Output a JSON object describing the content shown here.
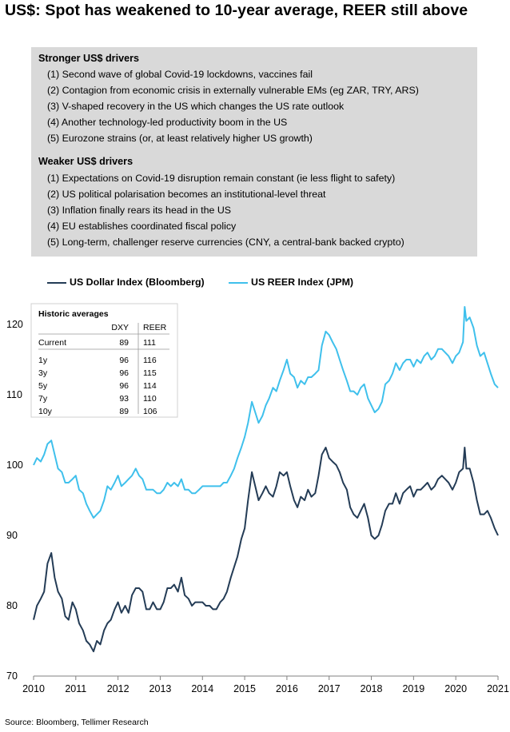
{
  "title": "US$: Spot has weakened to 10-year average, REER still above",
  "drivers": {
    "stronger": {
      "heading": "Stronger US$ drivers",
      "items": [
        "(1) Second wave of global Covid-19 lockdowns, vaccines fail",
        "(2) Contagion from economic crisis in externally vulnerable EMs (eg ZAR, TRY, ARS)",
        "(3) V-shaped recovery in the US which changes the US rate outlook",
        "(4) Another technology-led productivity boom in the US",
        "(5) Eurozone strains (or, at least relatively higher US growth)"
      ]
    },
    "weaker": {
      "heading": "Weaker US$ drivers",
      "items": [
        "(1) Expectations on Covid-19 disruption remain constant (ie less flight to safety)",
        "(2) US political polarisation becomes an institutional-level threat",
        "(3) Inflation finally rears its head in the US",
        "(4) EU establishes coordinated fiscal policy",
        "(5) Long-term, challenger reserve currencies (CNY, a central-bank backed crypto)"
      ]
    }
  },
  "legend": {
    "dxy": "US Dollar Index (Bloomberg)",
    "reer": "US REER Index (JPM)"
  },
  "colors": {
    "dxy": "#243c56",
    "reer": "#3fc0ec",
    "drivers_box": "#d9d9d9",
    "axis": "#808080"
  },
  "averages_table": {
    "title": "Historic averages",
    "headers": [
      "",
      "DXY",
      "REER"
    ],
    "current": [
      "Current",
      "89",
      "111"
    ],
    "rows": [
      [
        "1y",
        "96",
        "116"
      ],
      [
        "3y",
        "96",
        "115"
      ],
      [
        "5y",
        "96",
        "114"
      ],
      [
        "7y",
        "93",
        "110"
      ],
      [
        "10y",
        "89",
        "106"
      ]
    ]
  },
  "chart_data": {
    "type": "line",
    "x_ticks": [
      "2010",
      "2011",
      "2012",
      "2013",
      "2014",
      "2015",
      "2016",
      "2017",
      "2018",
      "2019",
      "2020",
      "2021"
    ],
    "y_ticks": [
      "70",
      "80",
      "90",
      "100",
      "110",
      "120"
    ],
    "ylim": [
      70,
      124
    ],
    "xlim": [
      2010.0,
      2021.0
    ],
    "grid": false,
    "legend_position": "top",
    "series": [
      {
        "name": "US Dollar Index (Bloomberg)",
        "key": "dxy",
        "points": [
          [
            2010.0,
            78.0
          ],
          [
            2010.08,
            80.0
          ],
          [
            2010.17,
            81.0
          ],
          [
            2010.25,
            82.0
          ],
          [
            2010.33,
            86.0
          ],
          [
            2010.42,
            87.5
          ],
          [
            2010.5,
            84.0
          ],
          [
            2010.58,
            82.0
          ],
          [
            2010.67,
            81.0
          ],
          [
            2010.75,
            78.5
          ],
          [
            2010.83,
            78.0
          ],
          [
            2010.92,
            80.5
          ],
          [
            2011.0,
            79.5
          ],
          [
            2011.08,
            77.5
          ],
          [
            2011.17,
            76.5
          ],
          [
            2011.25,
            75.0
          ],
          [
            2011.33,
            74.5
          ],
          [
            2011.42,
            73.5
          ],
          [
            2011.5,
            75.0
          ],
          [
            2011.58,
            74.5
          ],
          [
            2011.67,
            76.5
          ],
          [
            2011.75,
            77.5
          ],
          [
            2011.83,
            78.0
          ],
          [
            2011.92,
            79.5
          ],
          [
            2012.0,
            80.5
          ],
          [
            2012.08,
            79.0
          ],
          [
            2012.17,
            80.0
          ],
          [
            2012.25,
            79.0
          ],
          [
            2012.33,
            81.5
          ],
          [
            2012.42,
            82.5
          ],
          [
            2012.5,
            82.5
          ],
          [
            2012.58,
            82.0
          ],
          [
            2012.67,
            79.5
          ],
          [
            2012.75,
            79.5
          ],
          [
            2012.83,
            80.5
          ],
          [
            2012.92,
            79.5
          ],
          [
            2013.0,
            79.5
          ],
          [
            2013.08,
            80.5
          ],
          [
            2013.17,
            82.5
          ],
          [
            2013.25,
            82.5
          ],
          [
            2013.33,
            83.0
          ],
          [
            2013.42,
            82.0
          ],
          [
            2013.5,
            84.0
          ],
          [
            2013.58,
            81.5
          ],
          [
            2013.67,
            81.0
          ],
          [
            2013.75,
            80.0
          ],
          [
            2013.83,
            80.5
          ],
          [
            2013.92,
            80.5
          ],
          [
            2014.0,
            80.5
          ],
          [
            2014.08,
            80.0
          ],
          [
            2014.17,
            80.0
          ],
          [
            2014.25,
            79.5
          ],
          [
            2014.33,
            79.5
          ],
          [
            2014.42,
            80.5
          ],
          [
            2014.5,
            81.0
          ],
          [
            2014.58,
            82.0
          ],
          [
            2014.67,
            84.0
          ],
          [
            2014.75,
            85.5
          ],
          [
            2014.83,
            87.0
          ],
          [
            2014.92,
            89.5
          ],
          [
            2015.0,
            91.0
          ],
          [
            2015.08,
            95.0
          ],
          [
            2015.17,
            99.0
          ],
          [
            2015.25,
            97.0
          ],
          [
            2015.33,
            95.0
          ],
          [
            2015.42,
            96.0
          ],
          [
            2015.5,
            97.0
          ],
          [
            2015.58,
            96.0
          ],
          [
            2015.67,
            95.5
          ],
          [
            2015.75,
            97.0
          ],
          [
            2015.83,
            99.0
          ],
          [
            2015.92,
            98.5
          ],
          [
            2016.0,
            99.0
          ],
          [
            2016.08,
            97.0
          ],
          [
            2016.17,
            95.0
          ],
          [
            2016.25,
            94.0
          ],
          [
            2016.33,
            95.5
          ],
          [
            2016.42,
            95.0
          ],
          [
            2016.5,
            96.5
          ],
          [
            2016.58,
            95.5
          ],
          [
            2016.67,
            96.0
          ],
          [
            2016.75,
            98.5
          ],
          [
            2016.83,
            101.5
          ],
          [
            2016.92,
            102.5
          ],
          [
            2017.0,
            101.0
          ],
          [
            2017.08,
            100.5
          ],
          [
            2017.17,
            100.0
          ],
          [
            2017.25,
            99.0
          ],
          [
            2017.33,
            97.5
          ],
          [
            2017.42,
            96.5
          ],
          [
            2017.5,
            94.0
          ],
          [
            2017.58,
            93.0
          ],
          [
            2017.67,
            92.5
          ],
          [
            2017.75,
            93.5
          ],
          [
            2017.83,
            94.5
          ],
          [
            2017.92,
            92.5
          ],
          [
            2018.0,
            90.0
          ],
          [
            2018.08,
            89.5
          ],
          [
            2018.17,
            90.0
          ],
          [
            2018.25,
            91.5
          ],
          [
            2018.33,
            93.5
          ],
          [
            2018.42,
            94.5
          ],
          [
            2018.5,
            94.5
          ],
          [
            2018.58,
            96.0
          ],
          [
            2018.67,
            94.5
          ],
          [
            2018.75,
            96.0
          ],
          [
            2018.83,
            96.5
          ],
          [
            2018.92,
            97.0
          ],
          [
            2019.0,
            95.5
          ],
          [
            2019.08,
            96.5
          ],
          [
            2019.17,
            96.5
          ],
          [
            2019.25,
            97.0
          ],
          [
            2019.33,
            97.5
          ],
          [
            2019.42,
            96.5
          ],
          [
            2019.5,
            97.0
          ],
          [
            2019.58,
            98.0
          ],
          [
            2019.67,
            98.5
          ],
          [
            2019.75,
            98.0
          ],
          [
            2019.83,
            97.5
          ],
          [
            2019.92,
            96.5
          ],
          [
            2020.0,
            97.5
          ],
          [
            2020.08,
            99.0
          ],
          [
            2020.17,
            99.5
          ],
          [
            2020.21,
            102.5
          ],
          [
            2020.25,
            99.5
          ],
          [
            2020.33,
            99.5
          ],
          [
            2020.42,
            97.5
          ],
          [
            2020.5,
            95.0
          ],
          [
            2020.58,
            93.0
          ],
          [
            2020.67,
            93.0
          ],
          [
            2020.75,
            93.5
          ],
          [
            2020.83,
            92.5
          ],
          [
            2020.92,
            91.0
          ],
          [
            2021.0,
            90.0
          ]
        ]
      },
      {
        "name": "US REER Index (JPM)",
        "key": "reer",
        "points": [
          [
            2010.0,
            100.0
          ],
          [
            2010.08,
            101.0
          ],
          [
            2010.17,
            100.5
          ],
          [
            2010.25,
            101.5
          ],
          [
            2010.33,
            103.0
          ],
          [
            2010.42,
            103.5
          ],
          [
            2010.5,
            101.5
          ],
          [
            2010.58,
            99.5
          ],
          [
            2010.67,
            99.0
          ],
          [
            2010.75,
            97.5
          ],
          [
            2010.83,
            97.5
          ],
          [
            2010.92,
            98.0
          ],
          [
            2011.0,
            98.5
          ],
          [
            2011.08,
            96.5
          ],
          [
            2011.17,
            96.0
          ],
          [
            2011.25,
            94.5
          ],
          [
            2011.33,
            93.5
          ],
          [
            2011.42,
            92.5
          ],
          [
            2011.5,
            93.0
          ],
          [
            2011.58,
            93.5
          ],
          [
            2011.67,
            95.0
          ],
          [
            2011.75,
            97.0
          ],
          [
            2011.83,
            96.5
          ],
          [
            2011.92,
            97.5
          ],
          [
            2012.0,
            98.5
          ],
          [
            2012.08,
            97.0
          ],
          [
            2012.17,
            97.5
          ],
          [
            2012.25,
            98.0
          ],
          [
            2012.33,
            98.5
          ],
          [
            2012.42,
            99.5
          ],
          [
            2012.5,
            98.5
          ],
          [
            2012.58,
            98.0
          ],
          [
            2012.67,
            96.5
          ],
          [
            2012.75,
            96.5
          ],
          [
            2012.83,
            96.5
          ],
          [
            2012.92,
            96.0
          ],
          [
            2013.0,
            96.0
          ],
          [
            2013.08,
            96.5
          ],
          [
            2013.17,
            97.5
          ],
          [
            2013.25,
            97.0
          ],
          [
            2013.33,
            97.5
          ],
          [
            2013.42,
            97.0
          ],
          [
            2013.5,
            98.0
          ],
          [
            2013.58,
            96.5
          ],
          [
            2013.67,
            96.5
          ],
          [
            2013.75,
            96.0
          ],
          [
            2013.83,
            96.0
          ],
          [
            2013.92,
            96.5
          ],
          [
            2014.0,
            97.0
          ],
          [
            2014.08,
            97.0
          ],
          [
            2014.17,
            97.0
          ],
          [
            2014.25,
            97.0
          ],
          [
            2014.33,
            97.0
          ],
          [
            2014.42,
            97.0
          ],
          [
            2014.5,
            97.5
          ],
          [
            2014.58,
            97.5
          ],
          [
            2014.67,
            98.5
          ],
          [
            2014.75,
            99.5
          ],
          [
            2014.83,
            101.0
          ],
          [
            2014.92,
            102.5
          ],
          [
            2015.0,
            104.0
          ],
          [
            2015.08,
            106.0
          ],
          [
            2015.17,
            109.0
          ],
          [
            2015.25,
            107.5
          ],
          [
            2015.33,
            106.0
          ],
          [
            2015.42,
            107.0
          ],
          [
            2015.5,
            108.5
          ],
          [
            2015.58,
            109.5
          ],
          [
            2015.67,
            111.0
          ],
          [
            2015.75,
            110.5
          ],
          [
            2015.83,
            112.0
          ],
          [
            2015.92,
            113.5
          ],
          [
            2016.0,
            115.0
          ],
          [
            2016.08,
            113.0
          ],
          [
            2016.17,
            112.5
          ],
          [
            2016.25,
            111.0
          ],
          [
            2016.33,
            112.0
          ],
          [
            2016.42,
            111.5
          ],
          [
            2016.5,
            112.5
          ],
          [
            2016.58,
            112.5
          ],
          [
            2016.67,
            113.0
          ],
          [
            2016.75,
            113.5
          ],
          [
            2016.83,
            117.0
          ],
          [
            2016.92,
            119.0
          ],
          [
            2017.0,
            118.5
          ],
          [
            2017.08,
            117.5
          ],
          [
            2017.17,
            116.5
          ],
          [
            2017.25,
            115.0
          ],
          [
            2017.33,
            113.5
          ],
          [
            2017.42,
            112.0
          ],
          [
            2017.5,
            110.5
          ],
          [
            2017.58,
            110.5
          ],
          [
            2017.67,
            110.0
          ],
          [
            2017.75,
            111.0
          ],
          [
            2017.83,
            111.5
          ],
          [
            2017.92,
            109.5
          ],
          [
            2018.0,
            108.5
          ],
          [
            2018.08,
            107.5
          ],
          [
            2018.17,
            108.0
          ],
          [
            2018.25,
            109.0
          ],
          [
            2018.33,
            111.5
          ],
          [
            2018.42,
            112.0
          ],
          [
            2018.5,
            113.0
          ],
          [
            2018.58,
            114.5
          ],
          [
            2018.67,
            113.5
          ],
          [
            2018.75,
            114.5
          ],
          [
            2018.83,
            115.0
          ],
          [
            2018.92,
            115.0
          ],
          [
            2019.0,
            114.0
          ],
          [
            2019.08,
            115.0
          ],
          [
            2019.17,
            114.5
          ],
          [
            2019.25,
            115.5
          ],
          [
            2019.33,
            116.0
          ],
          [
            2019.42,
            115.0
          ],
          [
            2019.5,
            115.5
          ],
          [
            2019.58,
            116.5
          ],
          [
            2019.67,
            116.5
          ],
          [
            2019.75,
            116.0
          ],
          [
            2019.83,
            115.5
          ],
          [
            2019.92,
            114.5
          ],
          [
            2020.0,
            115.5
          ],
          [
            2020.08,
            116.0
          ],
          [
            2020.17,
            117.5
          ],
          [
            2020.21,
            122.5
          ],
          [
            2020.25,
            120.5
          ],
          [
            2020.33,
            121.0
          ],
          [
            2020.42,
            119.5
          ],
          [
            2020.5,
            117.0
          ],
          [
            2020.58,
            115.5
          ],
          [
            2020.67,
            116.0
          ],
          [
            2020.75,
            114.5
          ],
          [
            2020.83,
            113.0
          ],
          [
            2020.92,
            111.5
          ],
          [
            2021.0,
            111.0
          ]
        ]
      }
    ]
  },
  "source": "Source: Bloomberg, Tellimer Research"
}
